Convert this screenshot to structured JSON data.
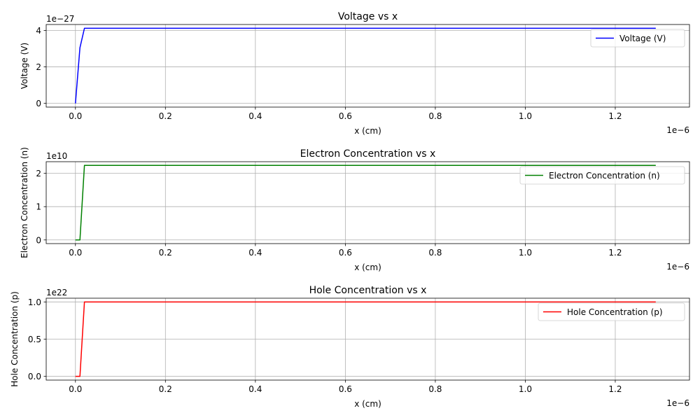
{
  "chart_data": [
    {
      "type": "line",
      "title": "Voltage vs x",
      "xlabel": "x (cm)",
      "ylabel": "Voltage (V)",
      "x_offset_label": "1e−6",
      "y_offset_label": "1e−27",
      "xlim": [
        -0.065,
        1.365
      ],
      "ylim": [
        -0.206,
        4.326
      ],
      "x_ticks": [
        0.0,
        0.2,
        0.4,
        0.6,
        0.8,
        1.0,
        1.2
      ],
      "x_tick_labels": [
        "0.0",
        "0.2",
        "0.4",
        "0.6",
        "0.8",
        "1.0",
        "1.2"
      ],
      "y_ticks": [
        0,
        2,
        4
      ],
      "y_tick_labels": [
        "0",
        "2",
        "4"
      ],
      "grid": true,
      "legend_position": "top-right",
      "series": [
        {
          "name": "Voltage (V)",
          "color": "#0000ff",
          "x": [
            0.0,
            0.01,
            0.02,
            1.29
          ],
          "y": [
            0.0,
            3.05,
            4.12,
            4.12
          ]
        }
      ]
    },
    {
      "type": "line",
      "title": "Electron Concentration vs x",
      "xlabel": "x (cm)",
      "ylabel": "Electron Concentration (n)",
      "x_offset_label": "1e−6",
      "y_offset_label": "1e10",
      "xlim": [
        -0.065,
        1.365
      ],
      "ylim": [
        -0.11,
        2.35
      ],
      "x_ticks": [
        0.0,
        0.2,
        0.4,
        0.6,
        0.8,
        1.0,
        1.2
      ],
      "x_tick_labels": [
        "0.0",
        "0.2",
        "0.4",
        "0.6",
        "0.8",
        "1.0",
        "1.2"
      ],
      "y_ticks": [
        0,
        1,
        2
      ],
      "y_tick_labels": [
        "0",
        "1",
        "2"
      ],
      "grid": true,
      "legend_position": "top-right",
      "series": [
        {
          "name": "Electron Concentration (n)",
          "color": "#008000",
          "x": [
            0.0,
            0.01,
            0.02,
            1.29
          ],
          "y": [
            0.0,
            0.0,
            2.24,
            2.24
          ]
        }
      ]
    },
    {
      "type": "line",
      "title": "Hole Concentration vs x",
      "xlabel": "x (cm)",
      "ylabel": "Hole Concentration (p)",
      "x_offset_label": "1e−6",
      "y_offset_label": "1e22",
      "xlim": [
        -0.065,
        1.365
      ],
      "ylim": [
        -0.05,
        1.05
      ],
      "x_ticks": [
        0.0,
        0.2,
        0.4,
        0.6,
        0.8,
        1.0,
        1.2
      ],
      "x_tick_labels": [
        "0.0",
        "0.2",
        "0.4",
        "0.6",
        "0.8",
        "1.0",
        "1.2"
      ],
      "y_ticks": [
        0.0,
        0.5,
        1.0
      ],
      "y_tick_labels": [
        "0.0",
        "0.5",
        "1.0"
      ],
      "grid": true,
      "legend_position": "top-right",
      "series": [
        {
          "name": "Hole Concentration (p)",
          "color": "#ff0000",
          "x": [
            0.0,
            0.01,
            0.02,
            1.29
          ],
          "y": [
            0.0,
            0.0,
            1.0,
            1.0
          ]
        }
      ]
    }
  ]
}
